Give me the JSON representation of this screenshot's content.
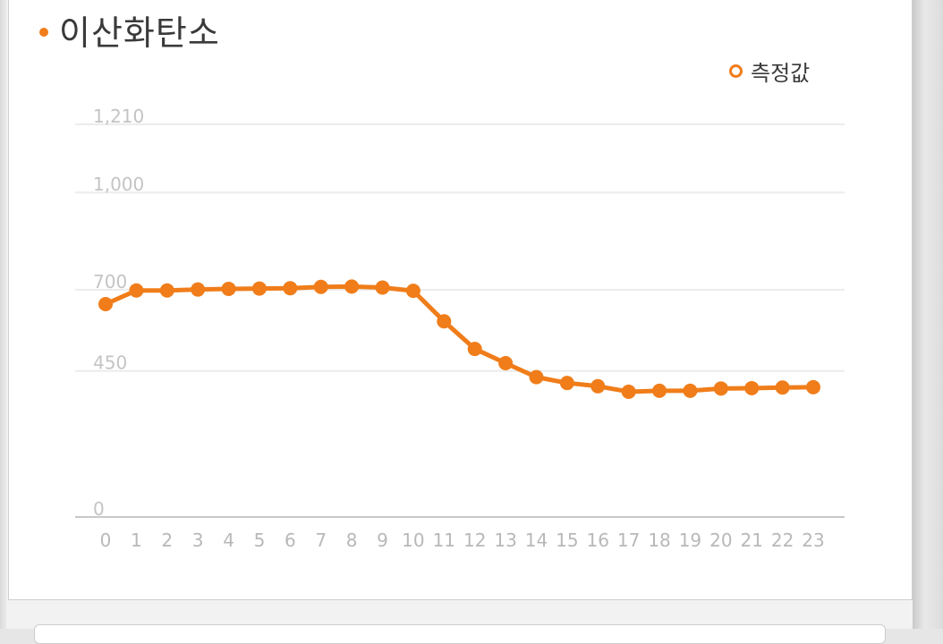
{
  "title": "이산화탄소",
  "colors": {
    "accent": "#f07d1a",
    "grid": "#ececec",
    "axis": "#c8c8c8"
  },
  "chart_data": {
    "type": "line",
    "title": "이산화탄소",
    "xlabel": "",
    "ylabel": "",
    "ylim": [
      0,
      1210
    ],
    "yticks": [
      "0",
      "450",
      "700",
      "1,000",
      "1,210"
    ],
    "ytick_values": [
      0,
      450,
      700,
      1000,
      1210
    ],
    "grid": true,
    "legend_position": "top-right",
    "x": [
      "0",
      "1",
      "2",
      "3",
      "4",
      "5",
      "6",
      "7",
      "8",
      "9",
      "10",
      "11",
      "12",
      "13",
      "14",
      "15",
      "16",
      "17",
      "18",
      "19",
      "20",
      "21",
      "22",
      "23"
    ],
    "series": [
      {
        "name": "측정값",
        "values": [
          656,
          698,
          698,
          701,
          703,
          704,
          705,
          709,
          710,
          707,
          697,
          603,
          518,
          474,
          431,
          413,
          403,
          386,
          389,
          389,
          396,
          397,
          399,
          400
        ]
      }
    ]
  }
}
